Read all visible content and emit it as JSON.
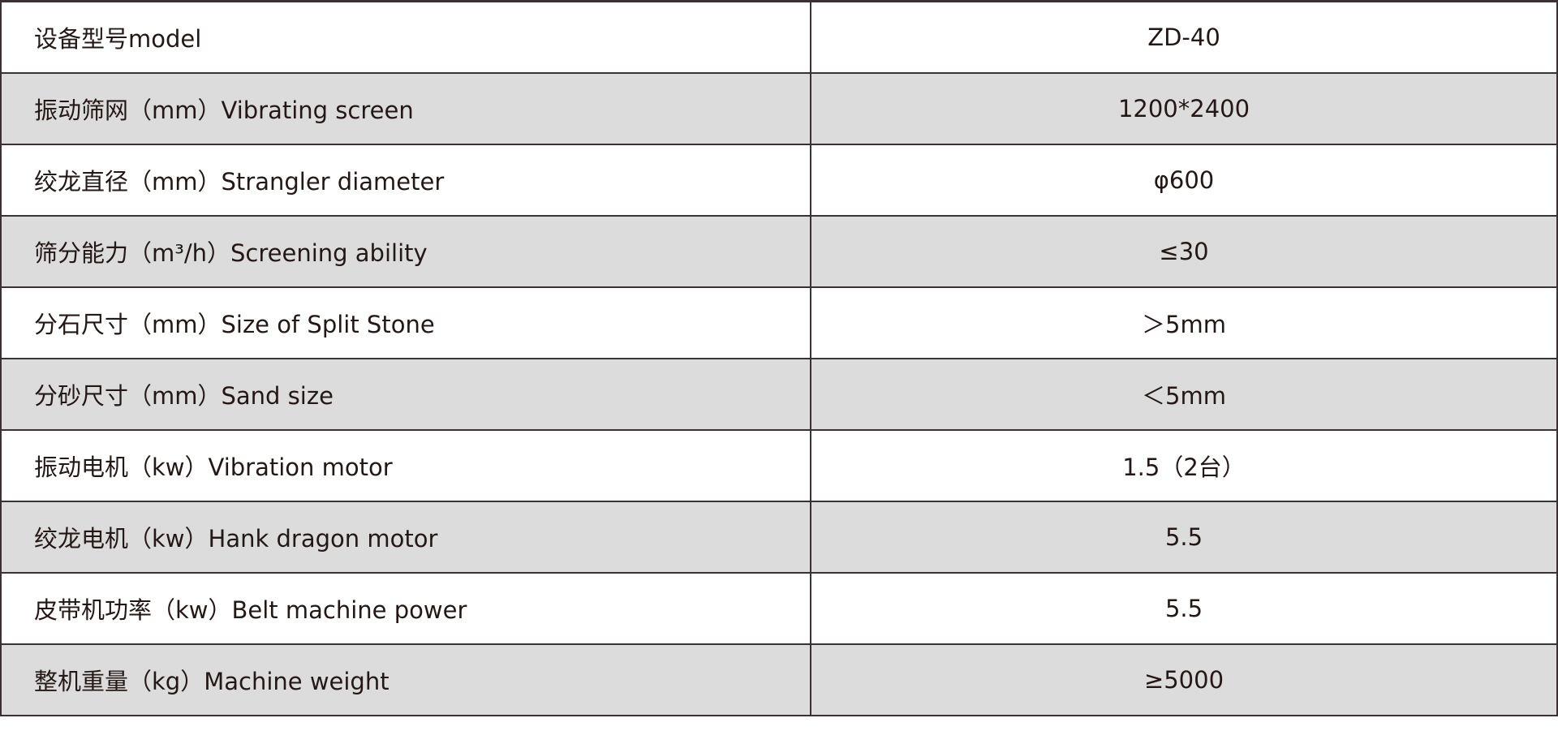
{
  "rows": [
    {
      "label": "设备型号model",
      "value": "ZD-40"
    },
    {
      "label": "振动筛网（mm）Vibrating screen",
      "value": "1200*2400"
    },
    {
      "label": "绞龙直径（mm）Strangler diameter",
      "value": "φ600"
    },
    {
      "label": "筛分能力（m³/h）Screening ability",
      "value": "≤30"
    },
    {
      "label": "分石尺寸（mm）Size of Split Stone",
      "value": "＞5mm"
    },
    {
      "label": "分砂尺寸（mm）Sand size",
      "value": "＜5mm"
    },
    {
      "label": "振动电机（kw）Vibration motor",
      "value": "1.5（2台）"
    },
    {
      "label": "绞龙电机（kw）Hank dragon motor",
      "value": "5.5"
    },
    {
      "label": "皮带机功率（kw）Belt machine power",
      "value": "5.5"
    },
    {
      "label": "整机重量（kg）Machine weight",
      "value": "≥5000"
    }
  ]
}
